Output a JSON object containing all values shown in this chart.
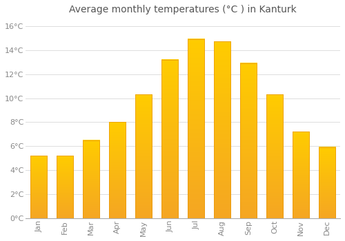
{
  "title": "Average monthly temperatures (°C ) in Kanturk",
  "months": [
    "Jan",
    "Feb",
    "Mar",
    "Apr",
    "May",
    "Jun",
    "Jul",
    "Aug",
    "Sep",
    "Oct",
    "Nov",
    "Dec"
  ],
  "values": [
    5.2,
    5.2,
    6.5,
    8.0,
    10.3,
    13.2,
    14.9,
    14.7,
    12.9,
    10.3,
    7.2,
    5.9
  ],
  "bar_color_top": "#FFCC00",
  "bar_color_bottom": "#F5A623",
  "bar_edge_color": "#E8960A",
  "background_color": "#FFFFFF",
  "grid_color": "#DDDDDD",
  "ylim": [
    0,
    16.5
  ],
  "ytick_vals": [
    0,
    2,
    4,
    6,
    8,
    10,
    12,
    14,
    16
  ],
  "ytick_labels": [
    "0°C",
    "2°C",
    "4°C",
    "6°C",
    "8°C",
    "10°C",
    "12°C",
    "14°C",
    "16°C"
  ],
  "title_fontsize": 10,
  "tick_fontsize": 8,
  "tick_font_color": "#888888",
  "bar_width": 0.65,
  "title_color": "#555555"
}
